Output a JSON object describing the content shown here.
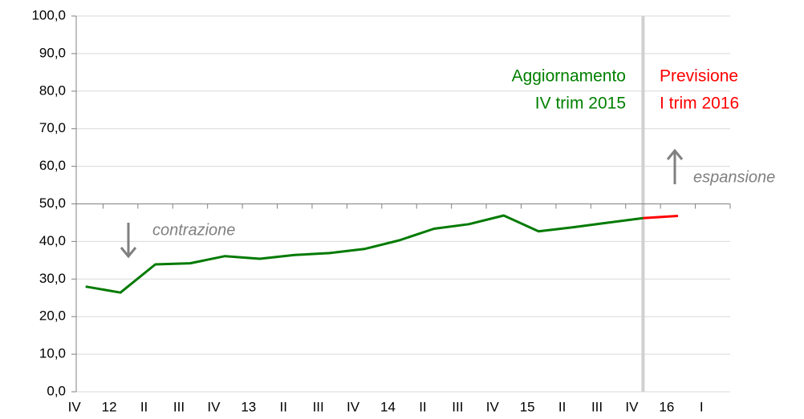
{
  "chart_data": {
    "type": "line",
    "categories": [
      "IV",
      "12",
      "II",
      "III",
      "IV",
      "13",
      "II",
      "III",
      "IV",
      "14",
      "II",
      "III",
      "IV",
      "15",
      "II",
      "III",
      "IV",
      "16",
      "I"
    ],
    "series": [
      {
        "color": "#007a00",
        "values": [
          28.0,
          26.4,
          33.9,
          34.2,
          36.1,
          35.4,
          36.4,
          36.9,
          38.0,
          40.3,
          43.4,
          44.6,
          46.9,
          42.7,
          43.8,
          45.0,
          46.2,
          null,
          null
        ]
      },
      {
        "color": "#ff0000",
        "values": [
          null,
          null,
          null,
          null,
          null,
          null,
          null,
          null,
          null,
          null,
          null,
          null,
          null,
          null,
          null,
          null,
          46.2,
          46.8,
          null
        ]
      }
    ],
    "ylim": [
      0,
      100
    ],
    "yticks": [
      {
        "value": 0,
        "label": "0,0"
      },
      {
        "value": 10,
        "label": "10,0"
      },
      {
        "value": 20,
        "label": "20,0"
      },
      {
        "value": 30,
        "label": "30,0"
      },
      {
        "value": 40,
        "label": "40,0"
      },
      {
        "value": 50,
        "label": "50,0"
      },
      {
        "value": 60,
        "label": "60,0"
      },
      {
        "value": 70,
        "label": "70,0"
      },
      {
        "value": 80,
        "label": "80,0"
      },
      {
        "value": 90,
        "label": "90,0"
      },
      {
        "value": 100,
        "label": "100,0"
      }
    ],
    "grid": true,
    "annotations": {
      "left": [
        "Aggiornamento",
        "IV trim 2015"
      ],
      "right": [
        "Previsione",
        "I trim 2016"
      ],
      "down": "contrazione",
      "up": "espansione"
    }
  }
}
